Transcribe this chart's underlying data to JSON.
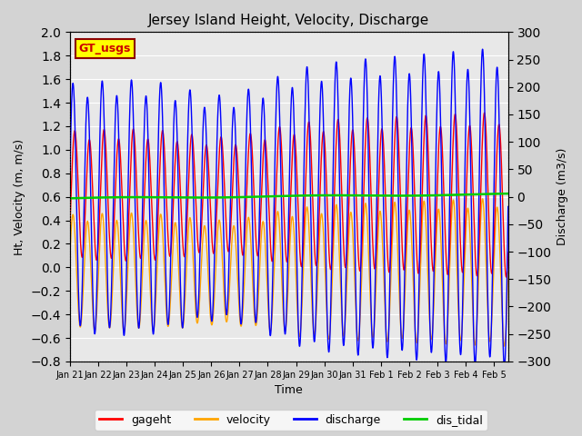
{
  "title": "Jersey Island Height, Velocity, Discharge",
  "xlabel": "Time",
  "ylabel_left": "Ht, Velocity (m, m/s)",
  "ylabel_right": "Discharge (m3/s)",
  "ylim_left": [
    -0.8,
    2.0
  ],
  "ylim_right": [
    -300,
    300
  ],
  "yticks_left": [
    -0.8,
    -0.6,
    -0.4,
    -0.2,
    0.0,
    0.2,
    0.4,
    0.6,
    0.8,
    1.0,
    1.2,
    1.4,
    1.6,
    1.8,
    2.0
  ],
  "yticks_right": [
    -300,
    -250,
    -200,
    -150,
    -100,
    -50,
    0,
    50,
    100,
    150,
    200,
    250,
    300
  ],
  "xtick_labels": [
    "Jan 21",
    "Jan 22",
    "Jan 23",
    "Jan 24",
    "Jan 25",
    "Jan 26",
    "Jan 27",
    "Jan 28",
    "Jan 29",
    "Jan 30",
    "Jan 31",
    "Feb 1",
    "Feb 2",
    "Feb 3",
    "Feb 4",
    "Feb 5"
  ],
  "legend_labels": [
    "gageht",
    "velocity",
    "discharge",
    "dis_tidal"
  ],
  "legend_colors": [
    "#ff0000",
    "#ffa500",
    "#0000ff",
    "#00cc00"
  ],
  "line_colors": {
    "gageht": "#ff0000",
    "velocity": "#ffa500",
    "discharge": "#0000ff",
    "dis_tidal": "#00cc00"
  },
  "background_color": "#d3d3d3",
  "plot_bg_color": "#e8e8e8",
  "annotation_text": "GT_usgs",
  "annotation_bg": "#ffff00",
  "annotation_border": "#8b0000",
  "tidal_period_hours": 12.42,
  "num_days": 15.5,
  "figsize": [
    6.4,
    4.8
  ],
  "dpi": 100
}
